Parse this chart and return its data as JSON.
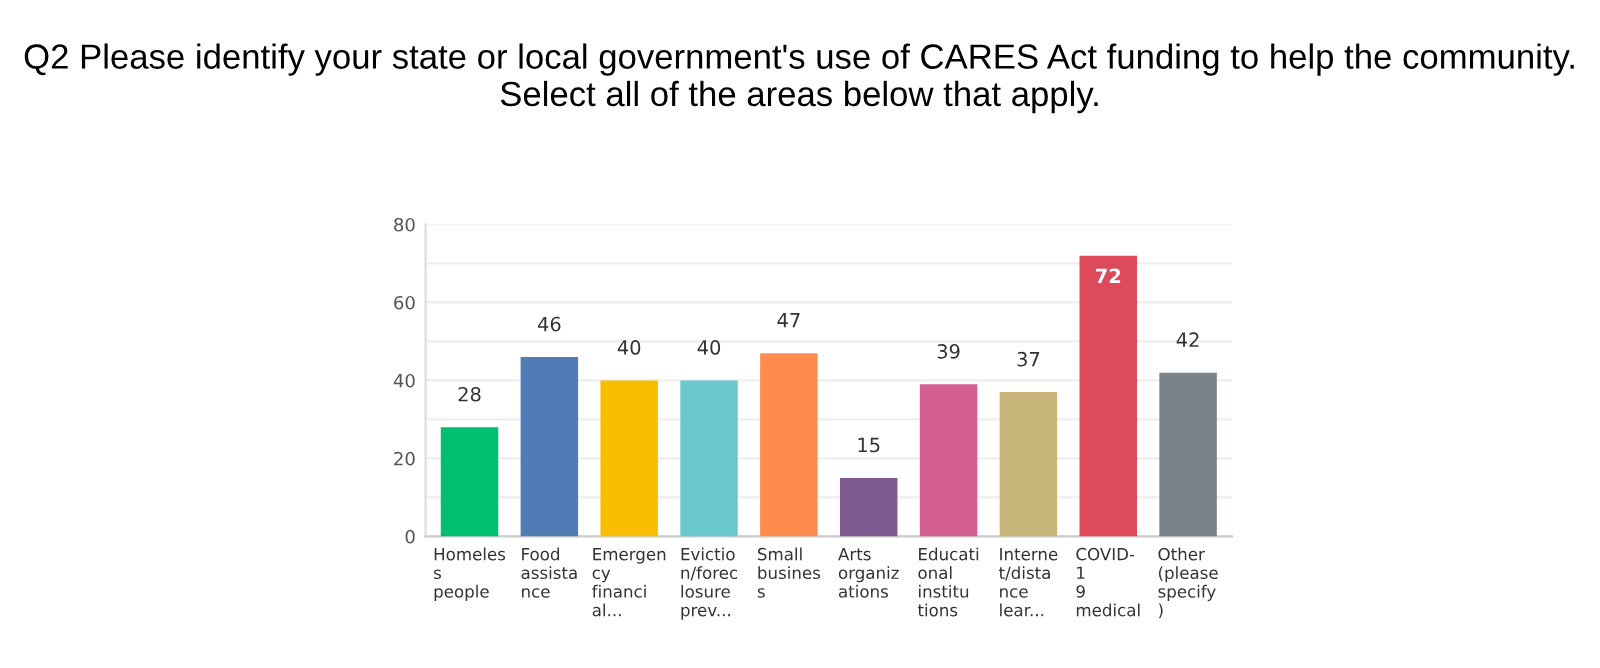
{
  "chart_data": {
    "type": "bar",
    "title": "Q2 Please identify your state or local government's use of CARES Act funding to help the community. Select all of the areas below that apply.",
    "categories": [
      "Homeles\ns\npeople",
      "Food\nassista\nnce",
      "Emergen\ncy\nfinanci\nal...",
      "Evictio\nn/forec\nlosure\nprev...",
      "Small\nbusines\ns",
      "Arts\norganiz\nations",
      "Educati\nonal\ninstitu\ntions",
      "Interne\nt/dista\nnce\nlear...",
      "COVID-\n1\n9\nmedical",
      "Other\n(please\nspecify\n)"
    ],
    "values": [
      28,
      46,
      40,
      40,
      47,
      15,
      39,
      37,
      72,
      42
    ],
    "colors": [
      "#00bf6f",
      "#507cb6",
      "#f9be00",
      "#6bc8cd",
      "#ff8b4f",
      "#7f5a8f",
      "#d25f90",
      "#c8b57a",
      "#dd4b5a",
      "#7b8288"
    ],
    "ylim": [
      0,
      80
    ],
    "yticks": [
      0,
      {
        "value": 10,
        "label": null
      },
      20,
      {
        "value": 30,
        "label": null
      },
      40,
      {
        "value": 50,
        "label": null
      },
      60,
      {
        "value": 70,
        "label": null
      },
      80
    ],
    "grid": "y",
    "data_labels": true
  }
}
